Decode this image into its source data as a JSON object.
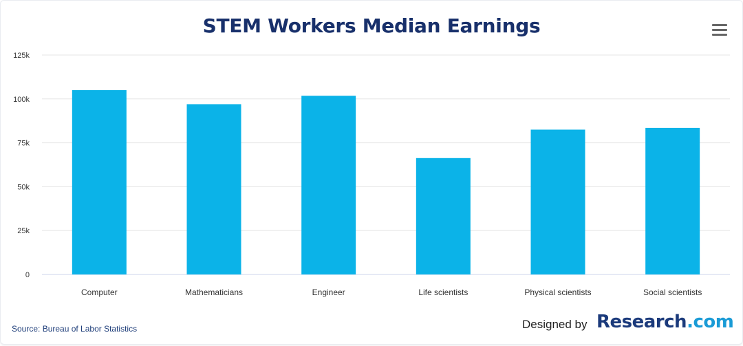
{
  "chart_data": {
    "type": "bar",
    "title": "STEM Workers Median Earnings",
    "categories": [
      "Computer",
      "Mathematicians",
      "Engineer",
      "Life scientists",
      "Physical scientists",
      "Social scientists"
    ],
    "values": [
      105000,
      97000,
      101800,
      66300,
      82500,
      83500
    ],
    "ylim": [
      0,
      125000
    ],
    "yticks": [
      "0",
      "25k",
      "50k",
      "75k",
      "100k",
      "125k"
    ],
    "ytick_values": [
      0,
      25000,
      50000,
      75000,
      100000,
      125000
    ],
    "grid": true,
    "bar_color": "#0bb3e8"
  },
  "source": "Source: Bureau of Labor Statistics",
  "credit": {
    "designed_by": "Designed by",
    "brand_name": "Research",
    "brand_suffix": ".com"
  },
  "menu": {
    "icon": "hamburger-menu-icon"
  },
  "colors": {
    "title": "#18306b",
    "brand": "#1b3a7b",
    "brand_accent": "#1a9bd6"
  }
}
